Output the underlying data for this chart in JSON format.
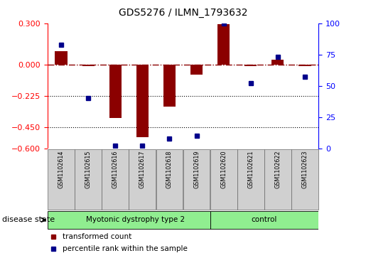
{
  "title": "GDS5276 / ILMN_1793632",
  "samples": [
    "GSM1102614",
    "GSM1102615",
    "GSM1102616",
    "GSM1102617",
    "GSM1102618",
    "GSM1102619",
    "GSM1102620",
    "GSM1102621",
    "GSM1102622",
    "GSM1102623"
  ],
  "transformed_count": [
    0.1,
    -0.01,
    -0.38,
    -0.52,
    -0.3,
    -0.07,
    0.295,
    -0.01,
    0.04,
    -0.01
  ],
  "percentile_rank": [
    83,
    40,
    2,
    2,
    8,
    10,
    100,
    52,
    73,
    57
  ],
  "groups": [
    {
      "label": "Myotonic dystrophy type 2",
      "start": 0,
      "end": 6,
      "color": "#90EE90"
    },
    {
      "label": "control",
      "start": 6,
      "end": 10,
      "color": "#90EE90"
    }
  ],
  "ylim_left": [
    -0.6,
    0.3
  ],
  "ylim_right": [
    0,
    100
  ],
  "yticks_left": [
    -0.6,
    -0.45,
    -0.225,
    0.0,
    0.3
  ],
  "yticks_right": [
    0,
    25,
    50,
    75,
    100
  ],
  "hline_y": 0.0,
  "dotted_lines": [
    -0.225,
    -0.45
  ],
  "bar_color": "#8B0000",
  "dot_color": "#00008B",
  "legend_items": [
    "transformed count",
    "percentile rank within the sample"
  ],
  "disease_state_label": "disease state"
}
